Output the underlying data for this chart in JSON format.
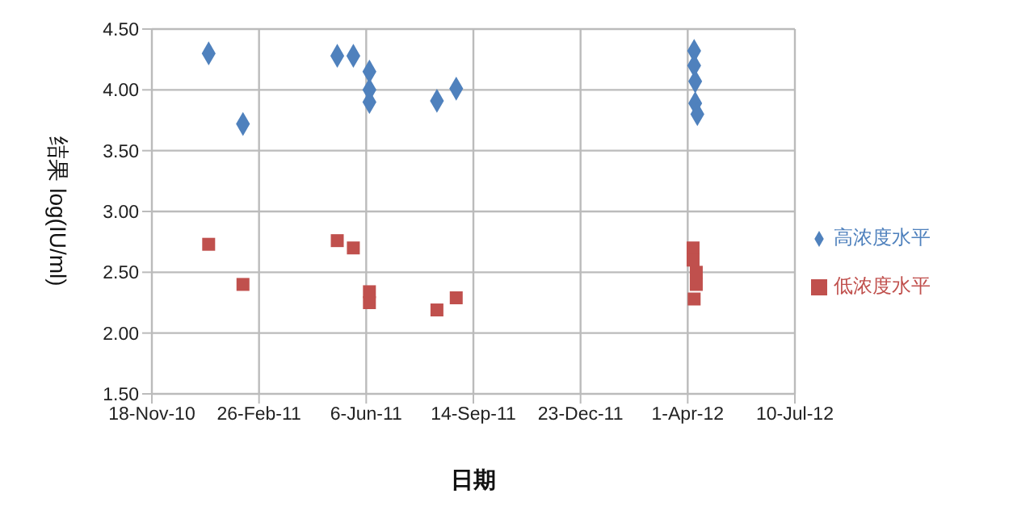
{
  "chart_data": {
    "type": "scatter",
    "xlabel": "日期",
    "ylabel": "结果 log(IU/ml)",
    "xlim": [
      "2010-11-18",
      "2012-07-10"
    ],
    "xticks": [
      {
        "value": "2010-11-18",
        "label": "18-Nov-10"
      },
      {
        "value": "2011-02-26",
        "label": "26-Feb-11"
      },
      {
        "value": "2011-06-06",
        "label": "6-Jun-11"
      },
      {
        "value": "2011-09-14",
        "label": "14-Sep-11"
      },
      {
        "value": "2011-12-23",
        "label": "23-Dec-11"
      },
      {
        "value": "2012-04-01",
        "label": "1-Apr-12"
      },
      {
        "value": "2012-07-10",
        "label": "10-Jul-12"
      }
    ],
    "ylim": [
      1.5,
      4.5
    ],
    "yticks": [
      {
        "value": 1.5,
        "label": "1.50"
      },
      {
        "value": 2,
        "label": "2.00"
      },
      {
        "value": 2.5,
        "label": "2.50"
      },
      {
        "value": 3,
        "label": "3.00"
      },
      {
        "value": 3.5,
        "label": "3.50"
      },
      {
        "value": 4,
        "label": "4.00"
      },
      {
        "value": 4.5,
        "label": "4.50"
      }
    ],
    "grid": true,
    "legend": "right",
    "series": [
      {
        "name": "高浓度水平",
        "color": "#4f81bd",
        "marker": "diamond",
        "x": [
          "2011-01-10",
          "2011-02-11",
          "2011-05-10",
          "2011-05-25",
          "2011-06-09",
          "2011-06-09",
          "2011-06-09",
          "2011-08-11",
          "2011-08-29",
          "2012-04-07",
          "2012-04-07",
          "2012-04-08",
          "2012-04-08",
          "2012-04-10"
        ],
        "values": [
          4.3,
          3.72,
          4.28,
          4.28,
          4.15,
          4.0,
          3.9,
          3.91,
          4.01,
          4.32,
          4.2,
          4.07,
          3.89,
          3.8
        ]
      },
      {
        "name": "低浓度水平",
        "color": "#c0504d",
        "marker": "square",
        "x": [
          "2011-01-10",
          "2011-02-11",
          "2011-05-10",
          "2011-05-25",
          "2011-06-09",
          "2011-06-09",
          "2011-08-11",
          "2011-08-29",
          "2012-04-06",
          "2012-04-06",
          "2012-04-09",
          "2012-04-09",
          "2012-04-07"
        ],
        "values": [
          2.73,
          2.4,
          2.76,
          2.7,
          2.34,
          2.25,
          2.19,
          2.29,
          2.7,
          2.6,
          2.5,
          2.4,
          2.28
        ]
      }
    ]
  }
}
